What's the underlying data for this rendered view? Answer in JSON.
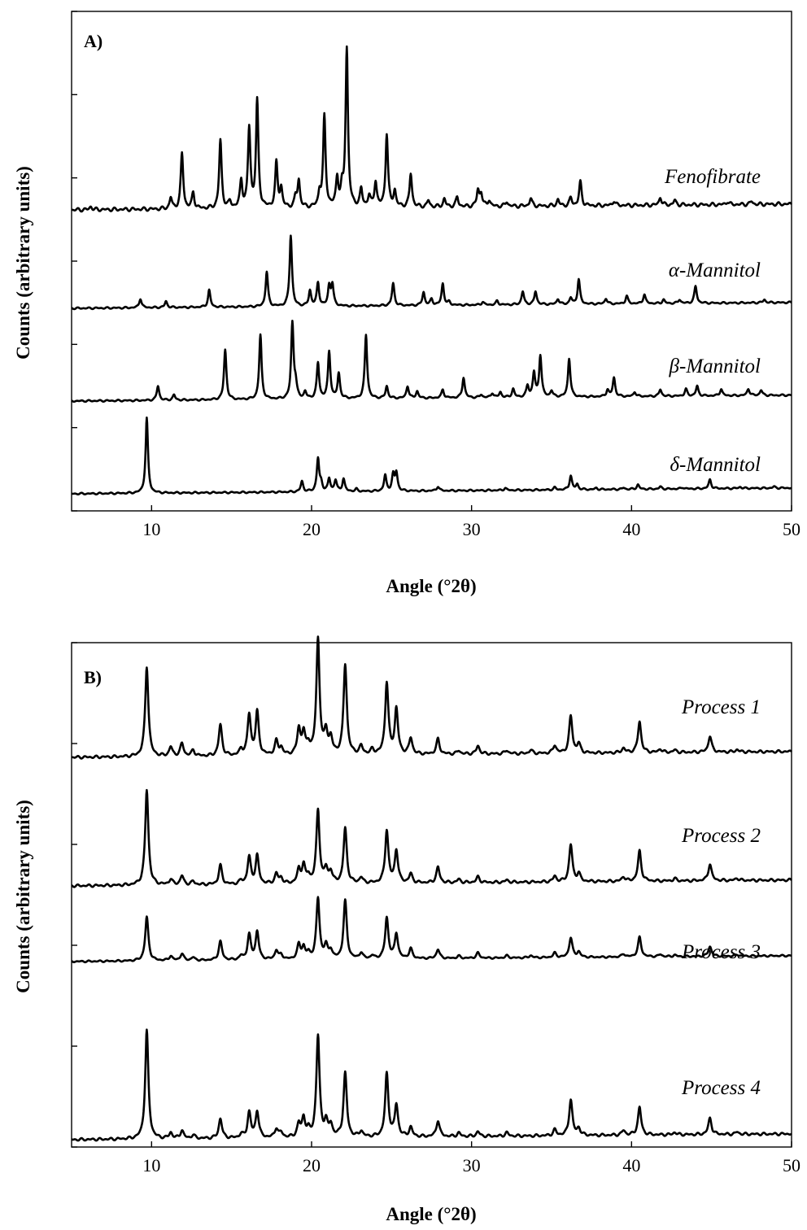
{
  "chart_data": [
    {
      "type": "line",
      "panel_label": "A)",
      "xlabel": "Angle (°2θ)",
      "ylabel": "Counts (arbitrary units)",
      "xlim": [
        5,
        50
      ],
      "x_ticks": [
        10,
        20,
        30,
        40,
        50
      ],
      "y_tick_count": 7,
      "grid": false,
      "series": [
        {
          "name": "Fenofibrate",
          "peaks": [
            [
              6.2,
              0.02
            ],
            [
              11.2,
              0.07
            ],
            [
              11.9,
              0.35
            ],
            [
              12.6,
              0.1
            ],
            [
              14.3,
              0.43
            ],
            [
              14.9,
              0.04
            ],
            [
              15.6,
              0.17
            ],
            [
              16.1,
              0.5
            ],
            [
              16.6,
              0.67
            ],
            [
              17.8,
              0.28
            ],
            [
              18.1,
              0.12
            ],
            [
              19.0,
              0.06
            ],
            [
              19.2,
              0.17
            ],
            [
              20.5,
              0.09
            ],
            [
              20.8,
              0.57
            ],
            [
              21.6,
              0.18
            ],
            [
              21.9,
              0.1
            ],
            [
              22.2,
              1.0
            ],
            [
              23.1,
              0.11
            ],
            [
              23.6,
              0.07
            ],
            [
              24.0,
              0.16
            ],
            [
              24.7,
              0.46
            ],
            [
              25.2,
              0.1
            ],
            [
              26.2,
              0.21
            ],
            [
              27.3,
              0.04
            ],
            [
              28.3,
              0.05
            ],
            [
              29.1,
              0.06
            ],
            [
              30.4,
              0.1
            ],
            [
              30.6,
              0.08
            ],
            [
              31.1,
              0.04
            ],
            [
              32.2,
              0.03
            ],
            [
              33.7,
              0.05
            ],
            [
              35.4,
              0.04
            ],
            [
              36.2,
              0.05
            ],
            [
              36.8,
              0.15
            ],
            [
              38.9,
              0.03
            ],
            [
              41.8,
              0.05
            ],
            [
              42.7,
              0.03
            ],
            [
              46.0,
              0.02
            ],
            [
              47.5,
              0.02
            ]
          ]
        },
        {
          "name": "α-Mannitol",
          "peaks": [
            [
              9.3,
              0.12
            ],
            [
              10.9,
              0.08
            ],
            [
              13.6,
              0.22
            ],
            [
              17.2,
              0.45
            ],
            [
              18.7,
              0.92
            ],
            [
              19.9,
              0.2
            ],
            [
              20.4,
              0.3
            ],
            [
              21.1,
              0.25
            ],
            [
              21.3,
              0.27
            ],
            [
              25.1,
              0.29
            ],
            [
              27.0,
              0.17
            ],
            [
              27.5,
              0.08
            ],
            [
              28.2,
              0.28
            ],
            [
              28.6,
              0.04
            ],
            [
              30.7,
              0.04
            ],
            [
              31.6,
              0.05
            ],
            [
              33.2,
              0.17
            ],
            [
              34.0,
              0.17
            ],
            [
              35.4,
              0.07
            ],
            [
              36.2,
              0.08
            ],
            [
              36.7,
              0.32
            ],
            [
              38.4,
              0.07
            ],
            [
              39.7,
              0.1
            ],
            [
              40.8,
              0.12
            ],
            [
              42.0,
              0.05
            ],
            [
              43.0,
              0.05
            ],
            [
              44.0,
              0.22
            ],
            [
              48.3,
              0.04
            ]
          ]
        },
        {
          "name": "β-Mannitol",
          "peaks": [
            [
              10.4,
              0.19
            ],
            [
              11.4,
              0.07
            ],
            [
              14.6,
              0.66
            ],
            [
              16.8,
              0.85
            ],
            [
              18.8,
              1.0
            ],
            [
              19.0,
              0.18
            ],
            [
              19.6,
              0.09
            ],
            [
              20.4,
              0.47
            ],
            [
              21.1,
              0.62
            ],
            [
              21.7,
              0.33
            ],
            [
              23.4,
              0.84
            ],
            [
              24.7,
              0.16
            ],
            [
              26.0,
              0.16
            ],
            [
              26.6,
              0.09
            ],
            [
              28.2,
              0.11
            ],
            [
              29.5,
              0.27
            ],
            [
              30.6,
              0.04
            ],
            [
              31.3,
              0.06
            ],
            [
              31.8,
              0.07
            ],
            [
              32.6,
              0.11
            ],
            [
              33.5,
              0.15
            ],
            [
              33.9,
              0.32
            ],
            [
              34.3,
              0.55
            ],
            [
              35.0,
              0.08
            ],
            [
              36.1,
              0.51
            ],
            [
              38.5,
              0.09
            ],
            [
              38.9,
              0.25
            ],
            [
              40.2,
              0.06
            ],
            [
              41.8,
              0.09
            ],
            [
              43.4,
              0.09
            ],
            [
              44.1,
              0.13
            ],
            [
              45.6,
              0.09
            ],
            [
              47.3,
              0.09
            ],
            [
              48.1,
              0.07
            ]
          ]
        },
        {
          "name": "δ-Mannitol",
          "peaks": [
            [
              9.7,
              1.0
            ],
            [
              19.4,
              0.14
            ],
            [
              20.4,
              0.44
            ],
            [
              20.6,
              0.1
            ],
            [
              21.1,
              0.17
            ],
            [
              21.5,
              0.15
            ],
            [
              22.0,
              0.17
            ],
            [
              22.8,
              0.03
            ],
            [
              24.6,
              0.21
            ],
            [
              25.1,
              0.21
            ],
            [
              25.3,
              0.24
            ],
            [
              27.9,
              0.06
            ],
            [
              32.1,
              0.03
            ],
            [
              35.2,
              0.03
            ],
            [
              36.2,
              0.19
            ],
            [
              36.6,
              0.07
            ],
            [
              37.8,
              0.02
            ],
            [
              39.5,
              0.02
            ],
            [
              40.4,
              0.06
            ],
            [
              41.8,
              0.03
            ],
            [
              43.2,
              0.02
            ],
            [
              44.9,
              0.12
            ],
            [
              46.8,
              0.02
            ],
            [
              48.9,
              0.02
            ]
          ]
        }
      ]
    },
    {
      "type": "line",
      "panel_label": "B)",
      "xlabel": "Angle (°2θ)",
      "ylabel": "Counts (arbitrary units)",
      "xlim": [
        5,
        50
      ],
      "x_ticks": [
        10,
        20,
        30,
        40,
        50
      ],
      "y_tick_count": 6,
      "grid": false,
      "series": [
        {
          "name": "Process 1",
          "peaks": [
            [
              9.7,
              0.78
            ],
            [
              11.2,
              0.08
            ],
            [
              11.9,
              0.11
            ],
            [
              12.6,
              0.05
            ],
            [
              14.3,
              0.27
            ],
            [
              15.6,
              0.05
            ],
            [
              16.1,
              0.35
            ],
            [
              16.6,
              0.37
            ],
            [
              17.8,
              0.12
            ],
            [
              18.1,
              0.06
            ],
            [
              19.2,
              0.22
            ],
            [
              19.5,
              0.18
            ],
            [
              19.8,
              0.08
            ],
            [
              20.4,
              1.0
            ],
            [
              20.9,
              0.19
            ],
            [
              21.2,
              0.13
            ],
            [
              22.1,
              0.78
            ],
            [
              23.1,
              0.07
            ],
            [
              23.8,
              0.04
            ],
            [
              24.7,
              0.62
            ],
            [
              25.3,
              0.39
            ],
            [
              26.2,
              0.14
            ],
            [
              27.9,
              0.13
            ],
            [
              29.2,
              0.03
            ],
            [
              30.4,
              0.07
            ],
            [
              32.2,
              0.03
            ],
            [
              33.7,
              0.03
            ],
            [
              35.2,
              0.07
            ],
            [
              36.2,
              0.32
            ],
            [
              36.7,
              0.08
            ],
            [
              39.5,
              0.04
            ],
            [
              40.5,
              0.27
            ],
            [
              41.8,
              0.03
            ],
            [
              42.7,
              0.02
            ],
            [
              44.9,
              0.14
            ],
            [
              46.6,
              0.02
            ]
          ]
        },
        {
          "name": "Process 2",
          "peaks": [
            [
              9.7,
              0.85
            ],
            [
              11.2,
              0.05
            ],
            [
              11.9,
              0.08
            ],
            [
              12.6,
              0.03
            ],
            [
              14.3,
              0.17
            ],
            [
              15.6,
              0.03
            ],
            [
              16.1,
              0.24
            ],
            [
              16.6,
              0.25
            ],
            [
              17.8,
              0.09
            ],
            [
              18.1,
              0.05
            ],
            [
              19.2,
              0.12
            ],
            [
              19.5,
              0.16
            ],
            [
              19.8,
              0.06
            ],
            [
              20.4,
              0.65
            ],
            [
              20.9,
              0.12
            ],
            [
              21.2,
              0.1
            ],
            [
              22.1,
              0.49
            ],
            [
              23.1,
              0.05
            ],
            [
              24.7,
              0.47
            ],
            [
              25.3,
              0.29
            ],
            [
              26.2,
              0.08
            ],
            [
              27.9,
              0.14
            ],
            [
              29.2,
              0.03
            ],
            [
              30.4,
              0.05
            ],
            [
              32.2,
              0.02
            ],
            [
              35.2,
              0.05
            ],
            [
              36.2,
              0.33
            ],
            [
              36.7,
              0.07
            ],
            [
              39.5,
              0.04
            ],
            [
              40.5,
              0.27
            ],
            [
              42.7,
              0.02
            ],
            [
              44.9,
              0.15
            ],
            [
              46.6,
              0.02
            ]
          ]
        },
        {
          "name": "Process 3",
          "peaks": [
            [
              9.7,
              0.58
            ],
            [
              11.2,
              0.06
            ],
            [
              11.9,
              0.09
            ],
            [
              12.6,
              0.04
            ],
            [
              14.3,
              0.25
            ],
            [
              15.6,
              0.05
            ],
            [
              16.1,
              0.33
            ],
            [
              16.6,
              0.37
            ],
            [
              17.8,
              0.12
            ],
            [
              18.1,
              0.06
            ],
            [
              19.2,
              0.19
            ],
            [
              19.5,
              0.15
            ],
            [
              19.8,
              0.07
            ],
            [
              20.4,
              0.8
            ],
            [
              20.9,
              0.17
            ],
            [
              21.2,
              0.11
            ],
            [
              22.1,
              0.77
            ],
            [
              23.1,
              0.08
            ],
            [
              23.8,
              0.04
            ],
            [
              24.7,
              0.54
            ],
            [
              25.3,
              0.33
            ],
            [
              26.2,
              0.13
            ],
            [
              27.9,
              0.12
            ],
            [
              29.2,
              0.03
            ],
            [
              30.4,
              0.07
            ],
            [
              32.2,
              0.03
            ],
            [
              33.7,
              0.03
            ],
            [
              35.2,
              0.06
            ],
            [
              36.2,
              0.26
            ],
            [
              36.7,
              0.07
            ],
            [
              39.5,
              0.04
            ],
            [
              40.5,
              0.26
            ],
            [
              41.8,
              0.03
            ],
            [
              42.7,
              0.02
            ],
            [
              44.9,
              0.13
            ],
            [
              46.6,
              0.02
            ]
          ]
        },
        {
          "name": "Process 4",
          "peaks": [
            [
              9.7,
              0.93
            ],
            [
              11.2,
              0.05
            ],
            [
              11.9,
              0.07
            ],
            [
              12.6,
              0.03
            ],
            [
              14.3,
              0.17
            ],
            [
              15.6,
              0.03
            ],
            [
              16.1,
              0.22
            ],
            [
              16.6,
              0.23
            ],
            [
              17.8,
              0.08
            ],
            [
              18.1,
              0.04
            ],
            [
              19.2,
              0.11
            ],
            [
              19.5,
              0.16
            ],
            [
              19.8,
              0.05
            ],
            [
              20.4,
              0.87
            ],
            [
              20.9,
              0.12
            ],
            [
              21.2,
              0.1
            ],
            [
              22.1,
              0.55
            ],
            [
              23.1,
              0.05
            ],
            [
              24.7,
              0.54
            ],
            [
              25.3,
              0.27
            ],
            [
              26.2,
              0.08
            ],
            [
              27.9,
              0.14
            ],
            [
              29.2,
              0.03
            ],
            [
              30.4,
              0.04
            ],
            [
              32.2,
              0.03
            ],
            [
              35.2,
              0.05
            ],
            [
              36.2,
              0.31
            ],
            [
              36.7,
              0.06
            ],
            [
              39.5,
              0.04
            ],
            [
              40.5,
              0.24
            ],
            [
              42.7,
              0.02
            ],
            [
              44.9,
              0.14
            ],
            [
              46.6,
              0.02
            ]
          ]
        }
      ]
    }
  ]
}
